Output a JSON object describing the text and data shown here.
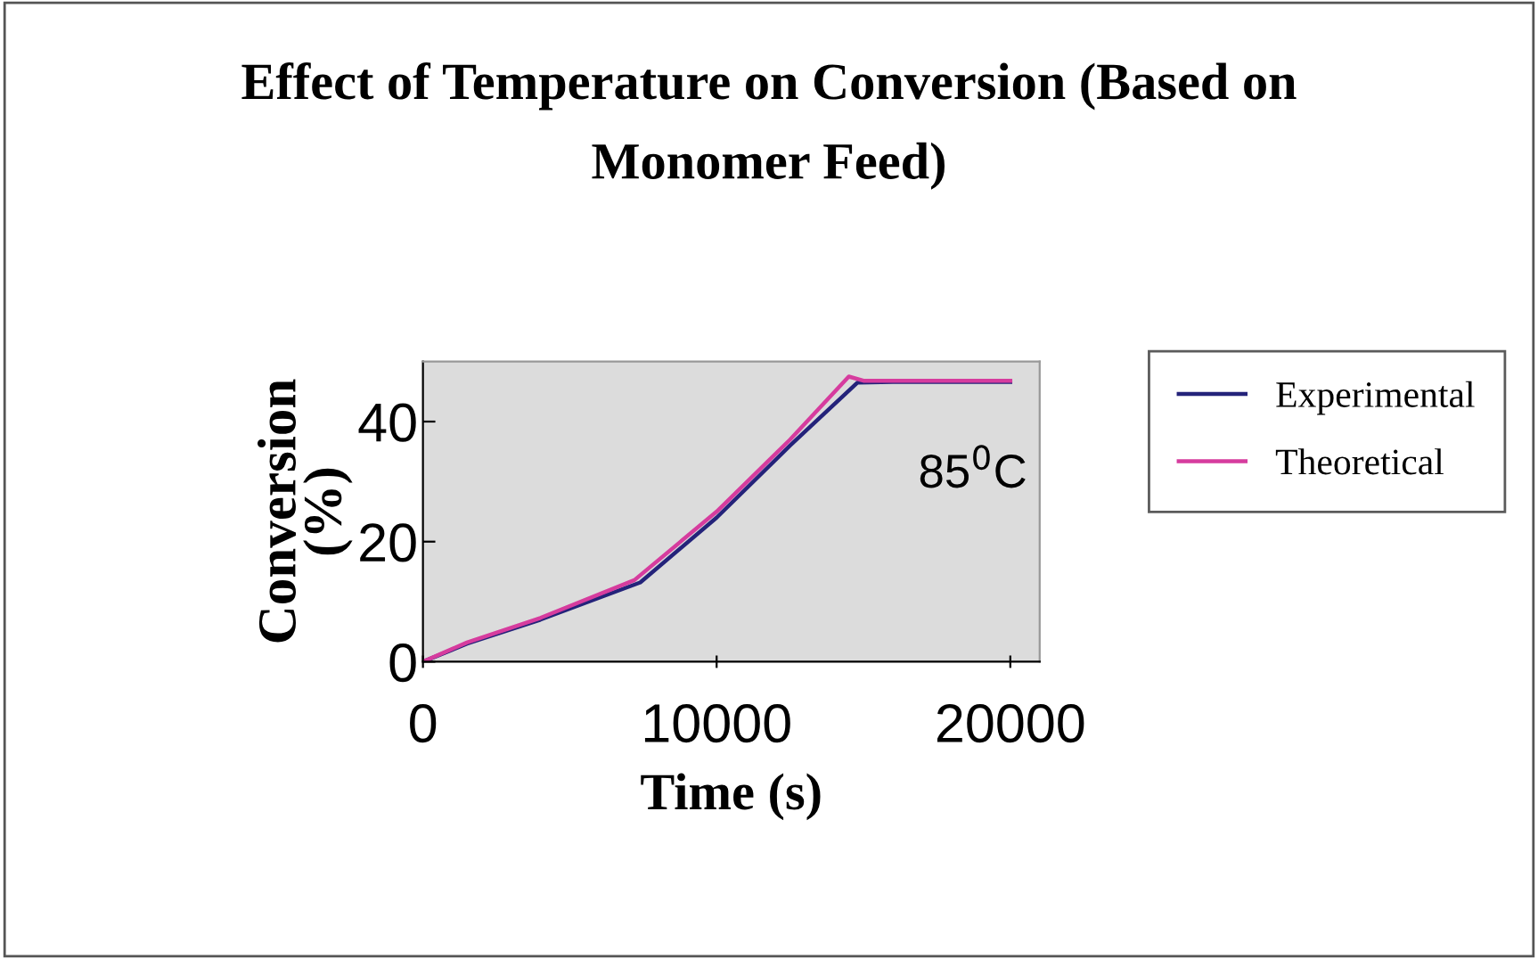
{
  "chart_data": {
    "type": "line",
    "title": "Effect of Temperature on Conversion (Based on\nMonomer Feed)",
    "xlabel": "Time (s)",
    "ylabel": "Conversion\n(%)",
    "annotations": [
      "85$^{0}$C"
    ],
    "series": [
      {
        "name": "Experimental",
        "color": "#24237a",
        "x": [
          0,
          1500,
          4000,
          7400,
          10000,
          12500,
          14800,
          16000,
          20000
        ],
        "values": [
          0,
          3,
          7,
          13.2,
          24,
          36,
          46.5,
          46.6,
          46.6
        ]
      },
      {
        "name": "Theoretical",
        "color": "#d63c9e",
        "x": [
          0,
          1500,
          4000,
          7200,
          10000,
          12500,
          14500,
          15000,
          20000
        ],
        "values": [
          0,
          3.2,
          7.3,
          13.6,
          25,
          37,
          47.5,
          46.8,
          46.8
        ]
      }
    ],
    "xlim": [
      0,
      21000
    ],
    "xticks": [
      0,
      10000,
      20000
    ],
    "ylim": [
      0,
      50
    ],
    "yticks": [
      0,
      20,
      40
    ],
    "grid": false,
    "legend": "right",
    "marker": "none",
    "line_style": "solid"
  }
}
